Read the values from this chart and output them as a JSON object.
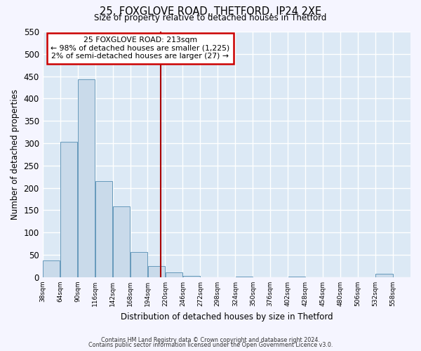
{
  "title1": "25, FOXGLOVE ROAD, THETFORD, IP24 2XE",
  "title2": "Size of property relative to detached houses in Thetford",
  "xlabel": "Distribution of detached houses by size in Thetford",
  "ylabel": "Number of detached properties",
  "bar_color": "#c9daea",
  "bar_edge_color": "#6699bb",
  "bg_color": "#dce9f5",
  "grid_color": "#ffffff",
  "bins_left": [
    38,
    64,
    90,
    116,
    142,
    168,
    194,
    220,
    246,
    272,
    298,
    324,
    350,
    376,
    402,
    428,
    454,
    480,
    506,
    532
  ],
  "bin_width": 26,
  "heights": [
    37,
    303,
    443,
    216,
    158,
    57,
    25,
    11,
    3,
    0,
    0,
    2,
    0,
    0,
    1,
    0,
    0,
    0,
    0,
    8
  ],
  "vline_x": 213,
  "vline_color": "#aa0000",
  "annotation_text": "25 FOXGLOVE ROAD: 213sqm\n← 98% of detached houses are smaller (1,225)\n2% of semi-detached houses are larger (27) →",
  "annotation_box_color": "#ffffff",
  "annotation_border_color": "#cc0000",
  "yticks": [
    0,
    50,
    100,
    150,
    200,
    250,
    300,
    350,
    400,
    450,
    500,
    550
  ],
  "xtick_labels": [
    "38sqm",
    "64sqm",
    "90sqm",
    "116sqm",
    "142sqm",
    "168sqm",
    "194sqm",
    "220sqm",
    "246sqm",
    "272sqm",
    "298sqm",
    "324sqm",
    "350sqm",
    "376sqm",
    "402sqm",
    "428sqm",
    "454sqm",
    "480sqm",
    "506sqm",
    "532sqm",
    "558sqm"
  ],
  "footer1": "Contains HM Land Registry data © Crown copyright and database right 2024.",
  "footer2": "Contains public sector information licensed under the Open Government Licence v3.0."
}
